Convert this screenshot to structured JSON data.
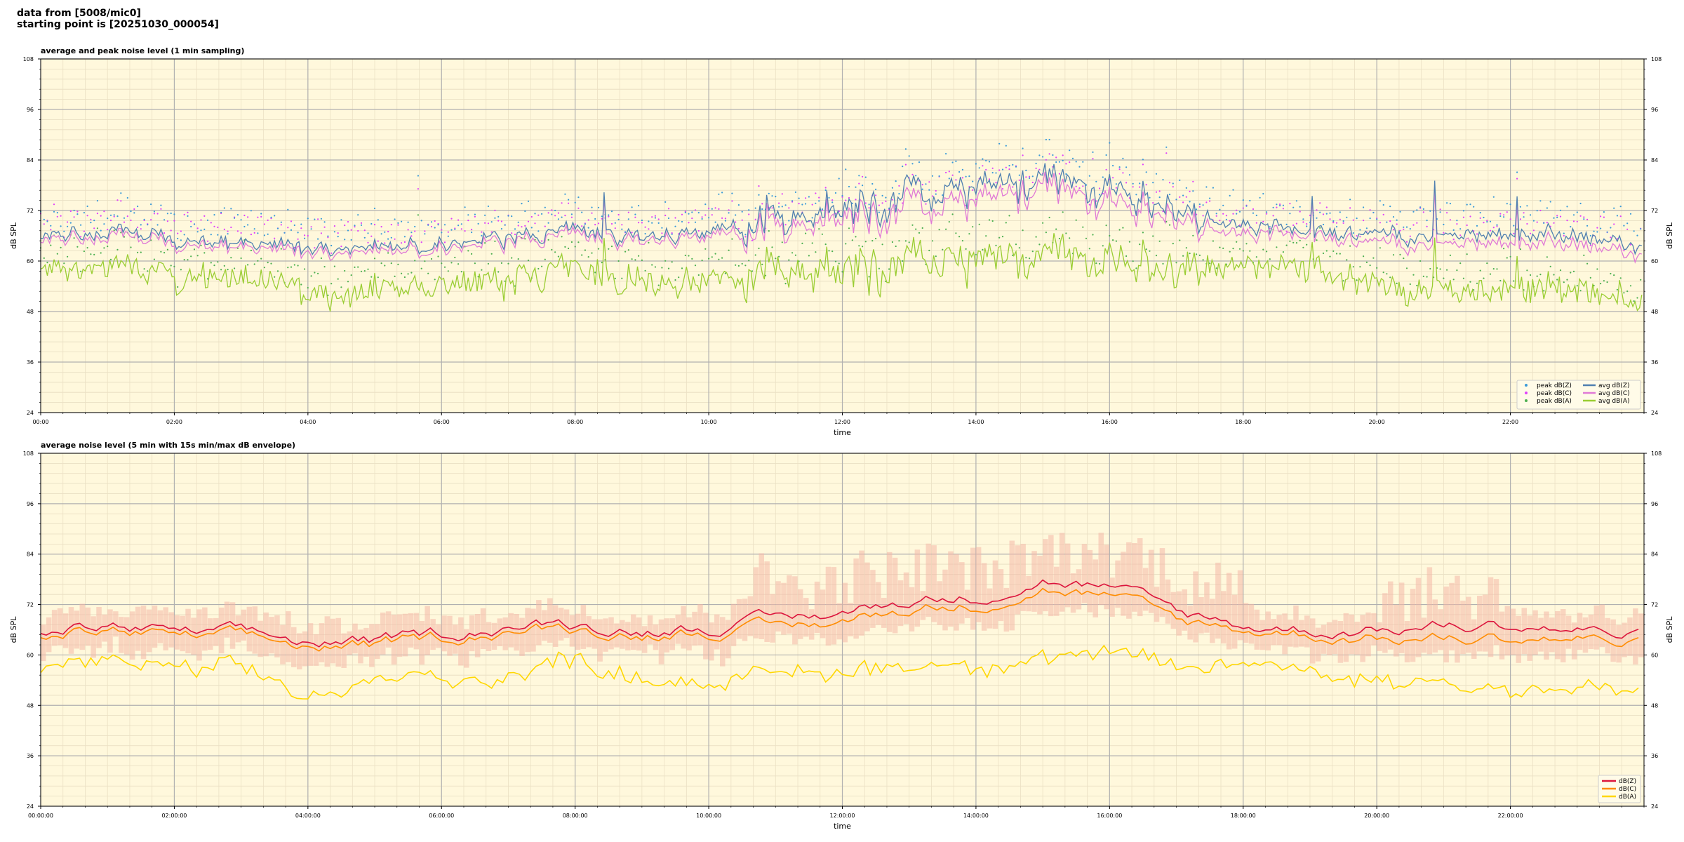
{
  "header": {
    "line1": "data from [5008/mic0]",
    "line2": "starting point is [20251030_000054]"
  },
  "chart_data": [
    {
      "type": "line",
      "title": "average and peak noise level (1 min sampling)",
      "xlabel": "time",
      "ylabel": "dB SPL",
      "ylim": [
        24,
        108
      ],
      "yticks": [
        24,
        36,
        48,
        60,
        72,
        84,
        96,
        108
      ],
      "xticks": [
        "00:00",
        "02:00",
        "04:00",
        "06:00",
        "08:00",
        "10:00",
        "12:00",
        "14:00",
        "16:00",
        "18:00",
        "20:00",
        "22:00"
      ],
      "xlim_hours": [
        0,
        24
      ],
      "grid": true,
      "background": "#fff8dc",
      "legend_position": "lower-right",
      "legend": [
        {
          "label": "peak dB(Z)",
          "kind": "point",
          "color": "#3a9ad9"
        },
        {
          "label": "peak dB(C)",
          "kind": "point",
          "color": "#e040fb"
        },
        {
          "label": "peak dB(A)",
          "kind": "point",
          "color": "#4caf50"
        },
        {
          "label": "avg dB(Z)",
          "kind": "line",
          "color": "#4f7fb0"
        },
        {
          "label": "avg dB(C)",
          "kind": "line",
          "color": "#e07ad6"
        },
        {
          "label": "avg dB(A)",
          "kind": "line",
          "color": "#9acd32"
        }
      ],
      "series_profile_hourly": {
        "hours": [
          0,
          1,
          2,
          3,
          4,
          5,
          6,
          7,
          8,
          9,
          10,
          11,
          12,
          13,
          14,
          15,
          16,
          17,
          18,
          19,
          20,
          21,
          22,
          23,
          24
        ],
        "avg_dBZ": [
          65,
          67,
          65,
          64,
          63,
          63,
          64,
          66,
          67,
          66,
          67,
          69,
          72,
          75,
          76,
          78,
          77,
          72,
          69,
          67,
          66,
          67,
          66,
          66,
          64
        ],
        "avg_dBC": [
          64,
          66,
          64,
          63,
          62,
          62,
          63,
          65,
          66,
          65,
          66,
          67,
          70,
          72,
          73,
          76,
          74,
          70,
          67,
          66,
          64,
          65,
          64,
          64,
          62
        ],
        "avg_dBA": [
          57,
          59,
          56,
          56,
          52,
          53,
          55,
          56,
          58,
          55,
          55,
          57,
          58,
          59,
          59,
          60,
          60,
          58,
          59,
          58,
          54,
          54,
          53,
          53,
          51
        ]
      }
    },
    {
      "type": "line",
      "title": "average noise level (5 min with 15s min/max dB envelope)",
      "xlabel": "time",
      "ylabel": "dB SPL",
      "ylim": [
        24,
        108
      ],
      "yticks": [
        24,
        36,
        48,
        60,
        72,
        84,
        96,
        108
      ],
      "xticks": [
        "00:00:00",
        "02:00:00",
        "04:00:00",
        "06:00:00",
        "08:00:00",
        "10:00:00",
        "12:00:00",
        "14:00:00",
        "16:00:00",
        "18:00:00",
        "20:00:00",
        "22:00:00"
      ],
      "xlim_hours": [
        0,
        24
      ],
      "grid": true,
      "background": "#fff8dc",
      "envelope_color": "#f4b8a8",
      "legend_position": "lower-right",
      "legend": [
        {
          "label": "dB(Z)",
          "kind": "line",
          "color": "#dc143c"
        },
        {
          "label": "dB(C)",
          "kind": "line",
          "color": "#ff8c00"
        },
        {
          "label": "dB(A)",
          "kind": "line",
          "color": "#ffd700"
        }
      ],
      "series_profile_hourly": {
        "hours": [
          0,
          1,
          2,
          3,
          4,
          5,
          6,
          7,
          8,
          9,
          10,
          11,
          12,
          13,
          14,
          15,
          16,
          17,
          18,
          19,
          20,
          21,
          22,
          23,
          24
        ],
        "dBZ": [
          65,
          67,
          65,
          65,
          63,
          63,
          65,
          67,
          67,
          66,
          67,
          68,
          70,
          73,
          74,
          78,
          76,
          70,
          67,
          66,
          66,
          67,
          67,
          66,
          64
        ],
        "dBC": [
          64,
          66,
          64,
          64,
          62,
          62,
          64,
          66,
          66,
          65,
          66,
          66,
          68,
          71,
          72,
          76,
          74,
          68,
          66,
          65,
          64,
          64,
          64,
          64,
          62
        ],
        "dBA": [
          57,
          59,
          56,
          56,
          50,
          53,
          55,
          55,
          59,
          55,
          54,
          55,
          56,
          58,
          58,
          60,
          60,
          56,
          58,
          57,
          54,
          54,
          52,
          52,
          51
        ]
      }
    }
  ]
}
